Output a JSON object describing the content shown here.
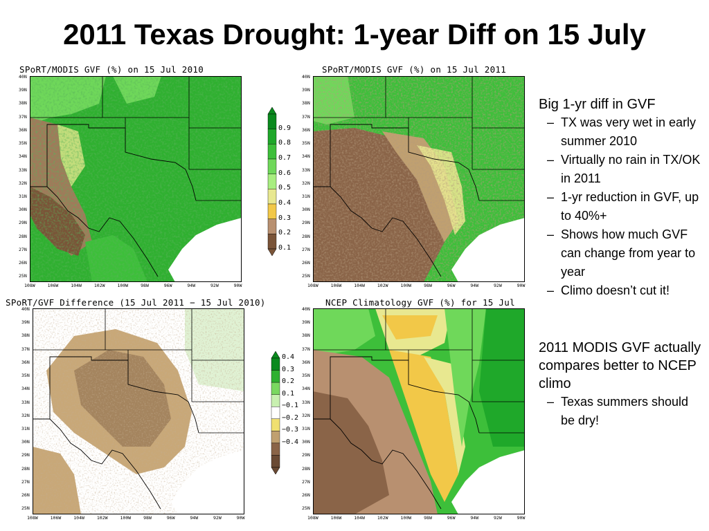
{
  "slide": {
    "title": "2011 Texas Drought: 1-year Diff on 15 July"
  },
  "panels": [
    {
      "title": "SPoRT/MODIS GVF (%) on 15 Jul 2010"
    },
    {
      "title": "SPoRT/MODIS GVF (%) on 15 Jul 2011"
    },
    {
      "title": "SPoRT/GVF Difference (15 Jul 2011 − 15 Jul 2010)"
    },
    {
      "title": "NCEP Climatology GVF (%) for 15 Jul"
    }
  ],
  "y_ticks": [
    "40N",
    "39N",
    "38N",
    "37N",
    "36N",
    "35N",
    "34N",
    "33N",
    "32N",
    "31N",
    "30N",
    "29N",
    "28N",
    "27N",
    "26N",
    "25N"
  ],
  "x_ticks": [
    "108W",
    "106W",
    "104W",
    "102W",
    "100W",
    "98W",
    "96W",
    "94W",
    "92W",
    "90W"
  ],
  "colorbar_gvf": {
    "labels": [
      "0.9",
      "0.8",
      "0.7",
      "0.6",
      "0.5",
      "0.4",
      "0.3",
      "0.2",
      "0.1"
    ],
    "colors": [
      "#0a8a1e",
      "#1fa82a",
      "#3dbf3a",
      "#6fd85a",
      "#a8ee80",
      "#e8e890",
      "#f2c848",
      "#b89070",
      "#7a5438"
    ]
  },
  "colorbar_diff": {
    "labels": [
      "0.4",
      "0.3",
      "0.2",
      "0.1",
      "−0.1",
      "−0.2",
      "−0.3",
      "−0.4"
    ],
    "colors": [
      "#0a8a1e",
      "#2fb030",
      "#7ad860",
      "#c8f0b0",
      "#ffffff",
      "#f0e070",
      "#c0a070",
      "#8a6448",
      "#6a4a34"
    ]
  },
  "notes": {
    "block1": {
      "heading": "Big 1-yr diff in GVF",
      "items": [
        "TX was very wet in early summer 2010",
        "Virtually no rain in TX/OK in 2011",
        "1-yr reduction in GVF, up to 40%+",
        "Shows how much GVF can change from year to year",
        "Climo doesn’t cut it!"
      ]
    },
    "block2": {
      "heading": "2011 MODIS GVF actually compares better to NCEP climo",
      "items": [
        "Texas summers should be dry!"
      ]
    }
  }
}
